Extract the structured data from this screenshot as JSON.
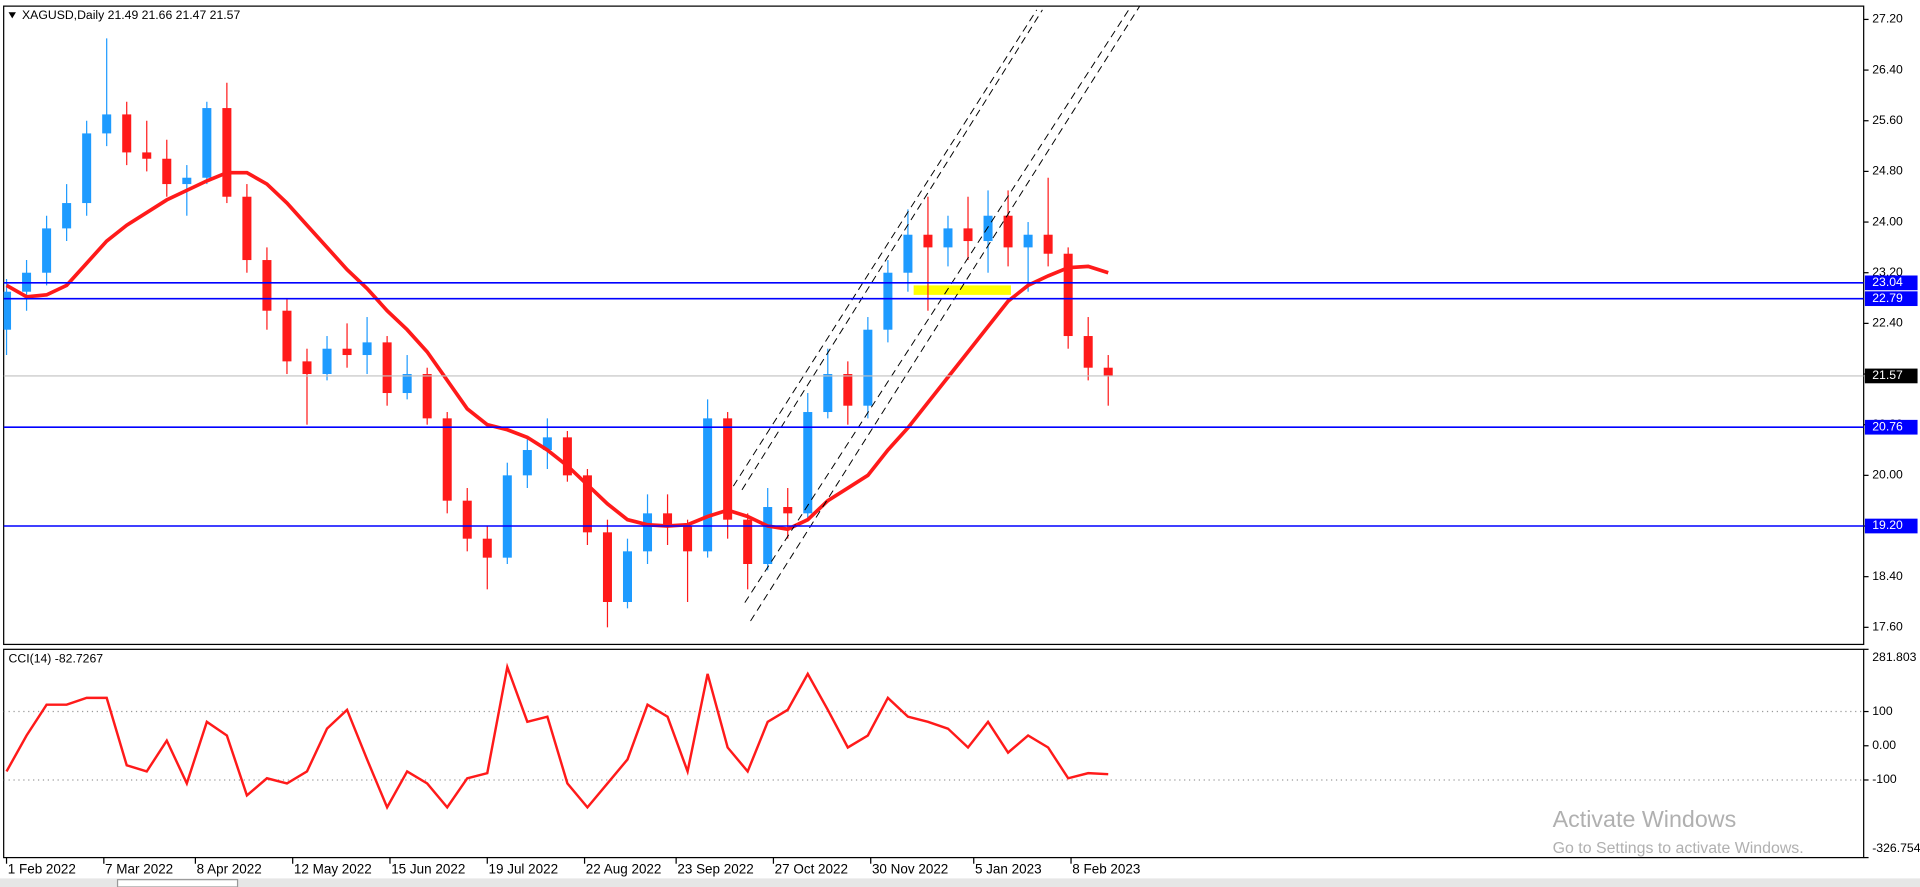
{
  "chart_data": [
    {
      "type": "candlestick",
      "title": "XAGUSD,Daily  21.49 21.66 21.47 21.57",
      "x": [
        "2022-02-01",
        "2022-02-08",
        "2022-02-15",
        "2022-02-22",
        "2022-03-01",
        "2022-03-08",
        "2022-03-15",
        "2022-03-22",
        "2022-03-29",
        "2022-04-05",
        "2022-04-12",
        "2022-04-19",
        "2022-04-26",
        "2022-05-03",
        "2022-05-10",
        "2022-05-17",
        "2022-05-24",
        "2022-05-31",
        "2022-06-07",
        "2022-06-14",
        "2022-06-21",
        "2022-06-28",
        "2022-07-05",
        "2022-07-12",
        "2022-07-19",
        "2022-07-26",
        "2022-08-02",
        "2022-08-09",
        "2022-08-16",
        "2022-08-23",
        "2022-08-30",
        "2022-09-06",
        "2022-09-13",
        "2022-09-20",
        "2022-09-27",
        "2022-10-04",
        "2022-10-11",
        "2022-10-18",
        "2022-10-25",
        "2022-11-01",
        "2022-11-08",
        "2022-11-15",
        "2022-11-22",
        "2022-11-29",
        "2022-12-06",
        "2022-12-13",
        "2022-12-20",
        "2022-12-27",
        "2023-01-03",
        "2023-01-10",
        "2023-01-17",
        "2023-01-24",
        "2023-01-31",
        "2023-02-07",
        "2023-02-14",
        "2023-02-21"
      ],
      "open": [
        22.3,
        22.9,
        23.2,
        23.9,
        24.3,
        25.4,
        25.7,
        25.1,
        25.0,
        24.6,
        24.7,
        25.8,
        24.4,
        23.4,
        22.6,
        21.8,
        21.6,
        22.0,
        21.9,
        22.1,
        21.3,
        21.6,
        20.9,
        19.6,
        19.0,
        18.7,
        20.0,
        20.4,
        20.6,
        20.0,
        19.1,
        18.0,
        18.8,
        19.4,
        19.2,
        18.8,
        20.9,
        19.3,
        18.6,
        19.5,
        19.4,
        21.0,
        21.6,
        21.1,
        22.3,
        23.2,
        23.8,
        23.6,
        23.9,
        23.7,
        24.1,
        23.6,
        23.8,
        23.5,
        22.2,
        21.7
      ],
      "high": [
        23.1,
        23.4,
        24.1,
        24.6,
        25.6,
        26.9,
        25.9,
        25.6,
        25.3,
        24.9,
        25.9,
        26.2,
        24.6,
        23.6,
        22.8,
        22.0,
        22.2,
        22.4,
        22.5,
        22.2,
        21.9,
        21.7,
        21.0,
        19.8,
        19.2,
        20.2,
        20.6,
        20.9,
        20.7,
        20.1,
        19.3,
        19.0,
        19.7,
        19.7,
        19.3,
        21.2,
        21.0,
        19.4,
        19.8,
        19.8,
        21.3,
        22.0,
        21.8,
        22.5,
        23.4,
        24.2,
        24.4,
        24.1,
        24.4,
        24.5,
        24.5,
        24.0,
        24.7,
        23.6,
        22.5,
        21.9
      ],
      "low": [
        21.9,
        22.6,
        23.0,
        23.7,
        24.1,
        25.2,
        24.9,
        24.8,
        24.4,
        24.1,
        24.6,
        24.3,
        23.2,
        22.3,
        21.6,
        20.8,
        21.5,
        21.7,
        21.6,
        21.1,
        21.2,
        20.8,
        19.4,
        18.8,
        18.2,
        18.6,
        19.8,
        20.1,
        19.9,
        18.9,
        17.6,
        17.9,
        18.6,
        18.9,
        18.0,
        18.7,
        19.0,
        18.2,
        18.5,
        19.0,
        19.3,
        20.9,
        20.8,
        20.9,
        22.1,
        22.9,
        22.6,
        23.3,
        23.4,
        23.2,
        23.3,
        22.9,
        23.3,
        22.0,
        21.5,
        21.1
      ],
      "close": [
        22.9,
        23.2,
        23.9,
        24.3,
        25.4,
        25.7,
        25.1,
        25.0,
        24.6,
        24.7,
        25.8,
        24.4,
        23.4,
        22.6,
        21.8,
        21.6,
        22.0,
        21.9,
        22.1,
        21.3,
        21.6,
        20.9,
        19.6,
        19.0,
        18.7,
        20.0,
        20.4,
        20.6,
        20.0,
        19.1,
        18.0,
        18.8,
        19.4,
        19.2,
        18.8,
        20.9,
        19.3,
        18.6,
        19.5,
        19.4,
        21.0,
        21.6,
        21.1,
        22.3,
        23.2,
        23.8,
        23.6,
        23.9,
        23.7,
        24.1,
        23.6,
        23.8,
        23.5,
        22.2,
        21.7,
        21.57
      ],
      "up_color": "#1e9bff",
      "down_color": "#ff1a1a",
      "moving_average": {
        "color": "#ff1a1a",
        "values": [
          23.0,
          22.82,
          22.85,
          23.0,
          23.35,
          23.7,
          23.95,
          24.15,
          24.35,
          24.5,
          24.65,
          24.78,
          24.78,
          24.6,
          24.3,
          23.95,
          23.6,
          23.25,
          22.95,
          22.6,
          22.3,
          21.95,
          21.5,
          21.05,
          20.8,
          20.72,
          20.6,
          20.4,
          20.15,
          19.85,
          19.55,
          19.3,
          19.22,
          19.2,
          19.22,
          19.35,
          19.45,
          19.35,
          19.2,
          19.15,
          19.3,
          19.6,
          19.8,
          20.0,
          20.4,
          20.75,
          21.15,
          21.55,
          21.95,
          22.35,
          22.75,
          23.0,
          23.15,
          23.28,
          23.3,
          23.2
        ]
      },
      "hlines": [
        23.04,
        22.79,
        20.76,
        {
          "value": 19.2,
          "label": "19.20"
        }
      ],
      "hline_color": "#0000ff",
      "last_price": 21.57,
      "rectangles": [
        {
          "x": [
            "2022-12-15",
            "2023-01-18"
          ],
          "y": [
            22.85,
            23.0
          ],
          "color": "#ffff00"
        }
      ],
      "trendlines": [
        {
          "x": [
            "2022-10-13",
            "2023-01-27"
          ],
          "y": [
            19.83,
            27.35
          ]
        },
        {
          "x": [
            "2022-10-16",
            "2023-01-29"
          ],
          "y": [
            19.77,
            27.35
          ]
        },
        {
          "x": [
            "2022-10-17",
            "2023-03-01"
          ],
          "y": [
            17.99,
            27.41
          ]
        },
        {
          "x": [
            "2022-10-19",
            "2023-03-04"
          ],
          "y": [
            17.7,
            27.41
          ]
        }
      ],
      "trendline_style": "dashed",
      "xlim": [
        "2022-01-31",
        "2023-11-12"
      ],
      "xticks": [
        {
          "value": "2022-02-01",
          "label": "1 Feb 2022"
        },
        {
          "value": "2022-03-07",
          "label": "7 Mar 2022"
        },
        {
          "value": "2022-04-08",
          "label": "8 Apr 2022"
        },
        {
          "value": "2022-05-12",
          "label": "12 May 2022"
        },
        {
          "value": "2022-06-15",
          "label": "15 Jun 2022"
        },
        {
          "value": "2022-07-19",
          "label": "19 Jul 2022"
        },
        {
          "value": "2022-08-22",
          "label": "22 Aug 2022"
        },
        {
          "value": "2022-09-23",
          "label": "23 Sep 2022"
        },
        {
          "value": "2022-10-27",
          "label": "27 Oct 2022"
        },
        {
          "value": "2022-11-30",
          "label": "30 Nov 2022"
        },
        {
          "value": "2023-01-05",
          "label": "5 Jan 2023"
        },
        {
          "value": "2023-02-08",
          "label": "8 Feb 2023"
        }
      ],
      "ylim": [
        17.33,
        27.41
      ],
      "yticks": [
        {
          "value": 17.6,
          "label": "17.60"
        },
        {
          "value": 18.4,
          "label": "18.40"
        },
        {
          "value": 19.2,
          "label": "19.20"
        },
        {
          "value": 20,
          "label": "20.00"
        },
        {
          "value": 20.8,
          "label": "20.80"
        },
        {
          "value": 21.6,
          "label": "21.60"
        },
        {
          "value": 22.4,
          "label": "22.40"
        },
        {
          "value": 23.2,
          "label": "23.20"
        },
        {
          "value": 24,
          "label": "24.00"
        },
        {
          "value": 24.8,
          "label": "24.80"
        },
        {
          "value": 25.6,
          "label": "25.60"
        },
        {
          "value": 26.4,
          "label": "26.40"
        },
        {
          "value": 27.2,
          "label": "27.20"
        }
      ]
    },
    {
      "type": "line",
      "title": "CCI(14) -82.7267",
      "values": [
        -75,
        30,
        120,
        120,
        140,
        140,
        -57,
        -75,
        15,
        -110,
        70,
        30,
        -145,
        -95,
        -110,
        -75,
        50,
        105,
        -40,
        -180,
        -75,
        -110,
        -180,
        -95,
        -80,
        230,
        70,
        85,
        -110,
        -180,
        -110,
        -40,
        120,
        85,
        -75,
        210,
        -5,
        -75,
        70,
        105,
        210,
        105,
        -5,
        30,
        140,
        85,
        70,
        50,
        -5,
        70,
        -20,
        30,
        -5,
        -95,
        -80,
        -83
      ],
      "color": "#ff1a1a",
      "ylim": [
        -326.754,
        281.803
      ],
      "yticks": [
        -326.754,
        -100,
        {
          "value": 0,
          "label": "0.00"
        },
        100,
        281.803
      ],
      "levels": [
        -100,
        100
      ]
    }
  ],
  "watermark": {
    "title": "Activate Windows",
    "subtitle": "Go to Settings to activate Windows."
  }
}
